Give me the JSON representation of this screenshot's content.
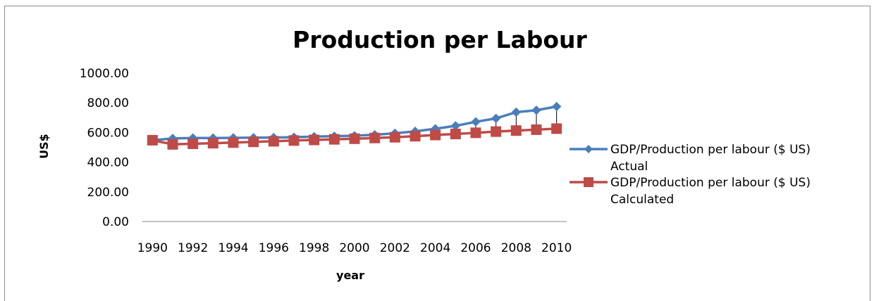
{
  "chart_data": {
    "type": "line",
    "title": "Production per Labour",
    "xlabel": "year",
    "ylabel": "US$",
    "ylim": [
      0,
      1000
    ],
    "yticks": [
      "0.00",
      "200.00",
      "400.00",
      "600.00",
      "800.00",
      "1000.00"
    ],
    "x": [
      1990,
      1991,
      1992,
      1993,
      1994,
      1995,
      1996,
      1997,
      1998,
      1999,
      2000,
      2001,
      2002,
      2003,
      2004,
      2005,
      2006,
      2007,
      2008,
      2009,
      2010
    ],
    "xtick_labels": [
      "1990",
      "1992",
      "1994",
      "1996",
      "1998",
      "2000",
      "2002",
      "2004",
      "2006",
      "2008",
      "2010"
    ],
    "grid": false,
    "legend_position": "right",
    "series": [
      {
        "name": "GDP/Production per labour ($ US) Actual",
        "legend_lines": [
          "GDP/Production per labour ($ US)",
          "Actual"
        ],
        "color": "#4a7ebb",
        "marker": "diamond",
        "values": [
          548,
          560,
          563,
          563,
          564,
          565,
          566,
          568,
          572,
          575,
          578,
          585,
          595,
          608,
          625,
          645,
          672,
          695,
          737,
          750,
          775
        ]
      },
      {
        "name": "GDP/Production per labour ($ US) Calculated",
        "legend_lines": [
          "GDP/Production per labour ($ US)",
          "Calculated"
        ],
        "color": "#be4b48",
        "marker": "square",
        "values": [
          548,
          520,
          524,
          528,
          532,
          537,
          541,
          546,
          550,
          554,
          558,
          563,
          568,
          575,
          583,
          590,
          598,
          606,
          613,
          619,
          626
        ]
      }
    ]
  }
}
